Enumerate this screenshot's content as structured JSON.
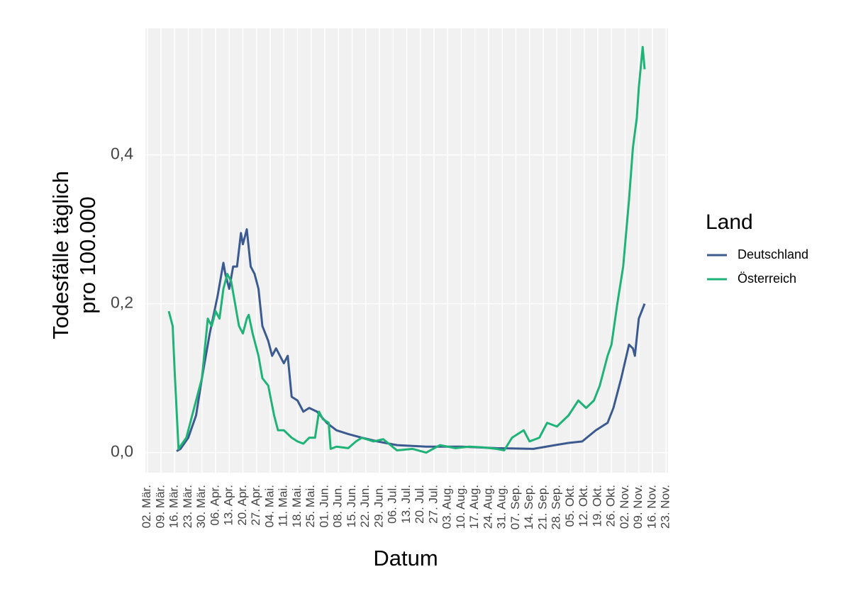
{
  "chart_data": {
    "type": "line",
    "ylabel": [
      "Todesfälle täglich",
      "pro 100.000"
    ],
    "xlabel": "Datum",
    "legend_title": "Land",
    "legend_position": "right",
    "grid": true,
    "xlim": [
      -1,
      267
    ],
    "ylim": [
      -0.027,
      0.57
    ],
    "yticks": [
      {
        "value": 0,
        "label": "0,0"
      },
      {
        "value": 0.2,
        "label": "0,2"
      },
      {
        "value": 0.4,
        "label": "0,4"
      }
    ],
    "xticks": [
      {
        "value": 0,
        "label": "02. Mär."
      },
      {
        "value": 7,
        "label": "09. Mär."
      },
      {
        "value": 14,
        "label": "16. Mär."
      },
      {
        "value": 21,
        "label": "23. Mär."
      },
      {
        "value": 28,
        "label": "30. Mär."
      },
      {
        "value": 35,
        "label": "06. Apr."
      },
      {
        "value": 42,
        "label": "13. Apr."
      },
      {
        "value": 49,
        "label": "20. Apr."
      },
      {
        "value": 56,
        "label": "27. Apr."
      },
      {
        "value": 63,
        "label": "04. Mai."
      },
      {
        "value": 70,
        "label": "11. Mai."
      },
      {
        "value": 77,
        "label": "18. Mai."
      },
      {
        "value": 84,
        "label": "25. Mai."
      },
      {
        "value": 91,
        "label": "01. Jun."
      },
      {
        "value": 98,
        "label": "08. Jun."
      },
      {
        "value": 105,
        "label": "15. Jun."
      },
      {
        "value": 112,
        "label": "22. Jun."
      },
      {
        "value": 119,
        "label": "29. Jun."
      },
      {
        "value": 126,
        "label": "06. Jul."
      },
      {
        "value": 133,
        "label": "13. Jul."
      },
      {
        "value": 140,
        "label": "20. Jul."
      },
      {
        "value": 147,
        "label": "27. Jul."
      },
      {
        "value": 154,
        "label": "03. Aug."
      },
      {
        "value": 161,
        "label": "10. Aug."
      },
      {
        "value": 168,
        "label": "17. Aug."
      },
      {
        "value": 175,
        "label": "24. Aug."
      },
      {
        "value": 182,
        "label": "31. Aug."
      },
      {
        "value": 189,
        "label": "07. Sep."
      },
      {
        "value": 196,
        "label": "14. Sep."
      },
      {
        "value": 203,
        "label": "21. Sep."
      },
      {
        "value": 210,
        "label": "28. Sep."
      },
      {
        "value": 217,
        "label": "05. Okt."
      },
      {
        "value": 224,
        "label": "12. Okt."
      },
      {
        "value": 231,
        "label": "19. Okt."
      },
      {
        "value": 238,
        "label": "26. Okt."
      },
      {
        "value": 245,
        "label": "02. Nov."
      },
      {
        "value": 252,
        "label": "09. Nov."
      },
      {
        "value": 259,
        "label": "16. Nov."
      },
      {
        "value": 266,
        "label": "23. Nov."
      }
    ],
    "series": [
      {
        "name": "Deutschland",
        "color": "#3b5a8f",
        "x": [
          15,
          17,
          21,
          25,
          28,
          32,
          36,
          39,
          40,
          42,
          44,
          46,
          48,
          49,
          51,
          53,
          55,
          57,
          59,
          62,
          64,
          66,
          68,
          70,
          72,
          74,
          77,
          80,
          83,
          87,
          92,
          97,
          103,
          110,
          118,
          128,
          143,
          161,
          179,
          198,
          209,
          216,
          223,
          230,
          236,
          239,
          243,
          247,
          249,
          250,
          252,
          255
        ],
        "values": [
          0.002,
          0.005,
          0.02,
          0.05,
          0.1,
          0.16,
          0.21,
          0.255,
          0.24,
          0.22,
          0.25,
          0.25,
          0.295,
          0.28,
          0.3,
          0.25,
          0.24,
          0.22,
          0.17,
          0.15,
          0.13,
          0.14,
          0.13,
          0.12,
          0.13,
          0.075,
          0.07,
          0.055,
          0.06,
          0.055,
          0.04,
          0.03,
          0.025,
          0.02,
          0.015,
          0.01,
          0.008,
          0.008,
          0.006,
          0.005,
          0.01,
          0.013,
          0.015,
          0.03,
          0.04,
          0.06,
          0.1,
          0.145,
          0.14,
          0.13,
          0.18,
          0.2
        ]
      },
      {
        "name": "Österreich",
        "color": "#1fb378",
        "x": [
          11,
          13,
          14,
          16,
          20,
          22,
          25,
          28,
          31,
          33,
          35,
          37,
          39,
          41,
          43,
          45,
          47,
          49,
          51,
          52,
          54,
          57,
          59,
          62,
          65,
          67,
          70,
          74,
          77,
          80,
          83,
          86,
          88,
          90,
          93,
          94,
          97,
          103,
          107,
          110,
          116,
          121,
          128,
          136,
          143,
          150,
          158,
          165,
          172,
          179,
          183,
          187,
          193,
          196,
          201,
          205,
          210,
          216,
          221,
          225,
          229,
          232,
          236,
          238,
          241,
          244,
          247,
          249,
          251,
          252,
          254,
          255
        ],
        "values": [
          0.19,
          0.17,
          0.11,
          0.005,
          0.02,
          0.04,
          0.07,
          0.1,
          0.18,
          0.17,
          0.19,
          0.18,
          0.22,
          0.24,
          0.23,
          0.2,
          0.17,
          0.16,
          0.18,
          0.185,
          0.16,
          0.13,
          0.1,
          0.09,
          0.05,
          0.03,
          0.03,
          0.02,
          0.015,
          0.012,
          0.02,
          0.02,
          0.055,
          0.045,
          0.04,
          0.005,
          0.008,
          0.006,
          0.015,
          0.02,
          0.015,
          0.018,
          0.003,
          0.005,
          0.0,
          0.01,
          0.006,
          0.008,
          0.007,
          0.005,
          0.003,
          0.02,
          0.03,
          0.015,
          0.02,
          0.04,
          0.035,
          0.05,
          0.07,
          0.06,
          0.07,
          0.09,
          0.13,
          0.145,
          0.2,
          0.25,
          0.34,
          0.41,
          0.45,
          0.49,
          0.545,
          0.515
        ]
      }
    ]
  }
}
